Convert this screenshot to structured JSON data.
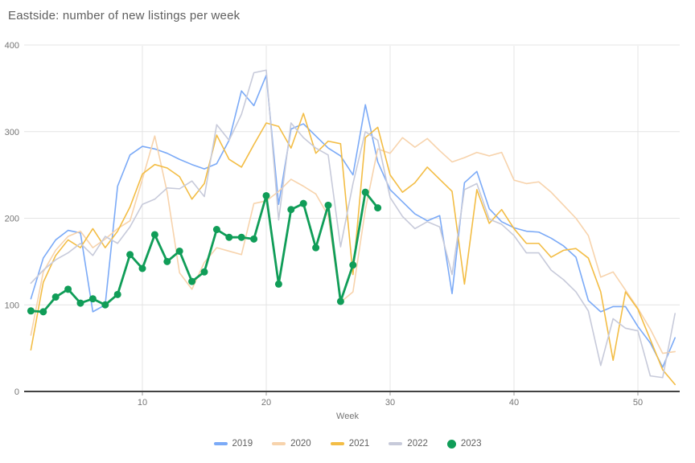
{
  "title": "Eastside: number of new listings per week",
  "axes": {
    "x_label": "Week",
    "x_ticks": [
      10,
      20,
      30,
      40,
      50
    ],
    "y_ticks": [
      0,
      100,
      200,
      300,
      400
    ]
  },
  "colors": {
    "background": "#ffffff",
    "title_text": "#5f5f5f",
    "tick_text": "#757575",
    "gridline": "#e4e4e4",
    "axis_line": "#424242",
    "series_2019": "#7baaf7",
    "series_2020": "#f7d3ac",
    "series_2021": "#f3bd45",
    "series_2022": "#c7cada",
    "series_2023": "#109d58"
  },
  "chart_data": {
    "type": "line",
    "title": "Eastside: number of new listings per week",
    "xlabel": "Week",
    "ylabel": "",
    "xlim": [
      1,
      53
    ],
    "ylim": [
      0,
      400
    ],
    "xticks": [
      10,
      20,
      30,
      40,
      50
    ],
    "yticks": [
      0,
      100,
      200,
      300,
      400
    ],
    "grid": true,
    "legend_position": "bottom",
    "x_start": 1,
    "x_step": 1,
    "series": [
      {
        "name": "2019",
        "color": "#7baaf7",
        "marker": false,
        "values": [
          107,
          154,
          175,
          186,
          183,
          92,
          100,
          237,
          273,
          283,
          280,
          275,
          268,
          262,
          257,
          263,
          290,
          347,
          330,
          365,
          216,
          303,
          309,
          295,
          281,
          272,
          250,
          331,
          265,
          233,
          219,
          205,
          197,
          203,
          113,
          241,
          254,
          211,
          196,
          189,
          185,
          184,
          177,
          168,
          155,
          105,
          92,
          98,
          98,
          75,
          56,
          28,
          62
        ]
      },
      {
        "name": "2020",
        "color": "#f7d3ac",
        "marker": false,
        "values": [
          65,
          138,
          163,
          179,
          185,
          166,
          176,
          188,
          197,
          245,
          295,
          230,
          137,
          118,
          149,
          166,
          162,
          158,
          217,
          220,
          231,
          245,
          237,
          228,
          203,
          103,
          115,
          210,
          280,
          275,
          293,
          282,
          292,
          278,
          265,
          270,
          276,
          272,
          276,
          244,
          240,
          242,
          230,
          215,
          200,
          180,
          132,
          138,
          117,
          96,
          72,
          44,
          46
        ]
      },
      {
        "name": "2021",
        "color": "#f3bd45",
        "marker": false,
        "values": [
          48,
          126,
          157,
          175,
          166,
          188,
          166,
          185,
          213,
          251,
          262,
          258,
          248,
          222,
          240,
          296,
          268,
          259,
          285,
          310,
          306,
          281,
          321,
          275,
          289,
          286,
          135,
          293,
          305,
          250,
          230,
          241,
          259,
          245,
          231,
          124,
          233,
          194,
          210,
          188,
          171,
          171,
          155,
          163,
          165,
          154,
          115,
          36,
          115,
          95,
          60,
          25,
          8
        ]
      },
      {
        "name": "2022",
        "color": "#c7cada",
        "marker": false,
        "values": [
          125,
          140,
          152,
          160,
          171,
          157,
          179,
          171,
          190,
          216,
          222,
          235,
          234,
          243,
          225,
          308,
          290,
          320,
          368,
          371,
          198,
          310,
          293,
          281,
          273,
          167,
          240,
          300,
          290,
          224,
          202,
          188,
          196,
          190,
          135,
          233,
          240,
          199,
          193,
          180,
          160,
          160,
          140,
          129,
          115,
          93,
          30,
          84,
          73,
          70,
          18,
          16,
          90
        ]
      },
      {
        "name": "2023",
        "color": "#109d58",
        "marker": true,
        "values": [
          93,
          92,
          109,
          118,
          102,
          107,
          100,
          112,
          158,
          142,
          181,
          150,
          162,
          127,
          138,
          187,
          178,
          178,
          176,
          226,
          124,
          210,
          217,
          166,
          215,
          104,
          146,
          230,
          212
        ]
      }
    ]
  }
}
